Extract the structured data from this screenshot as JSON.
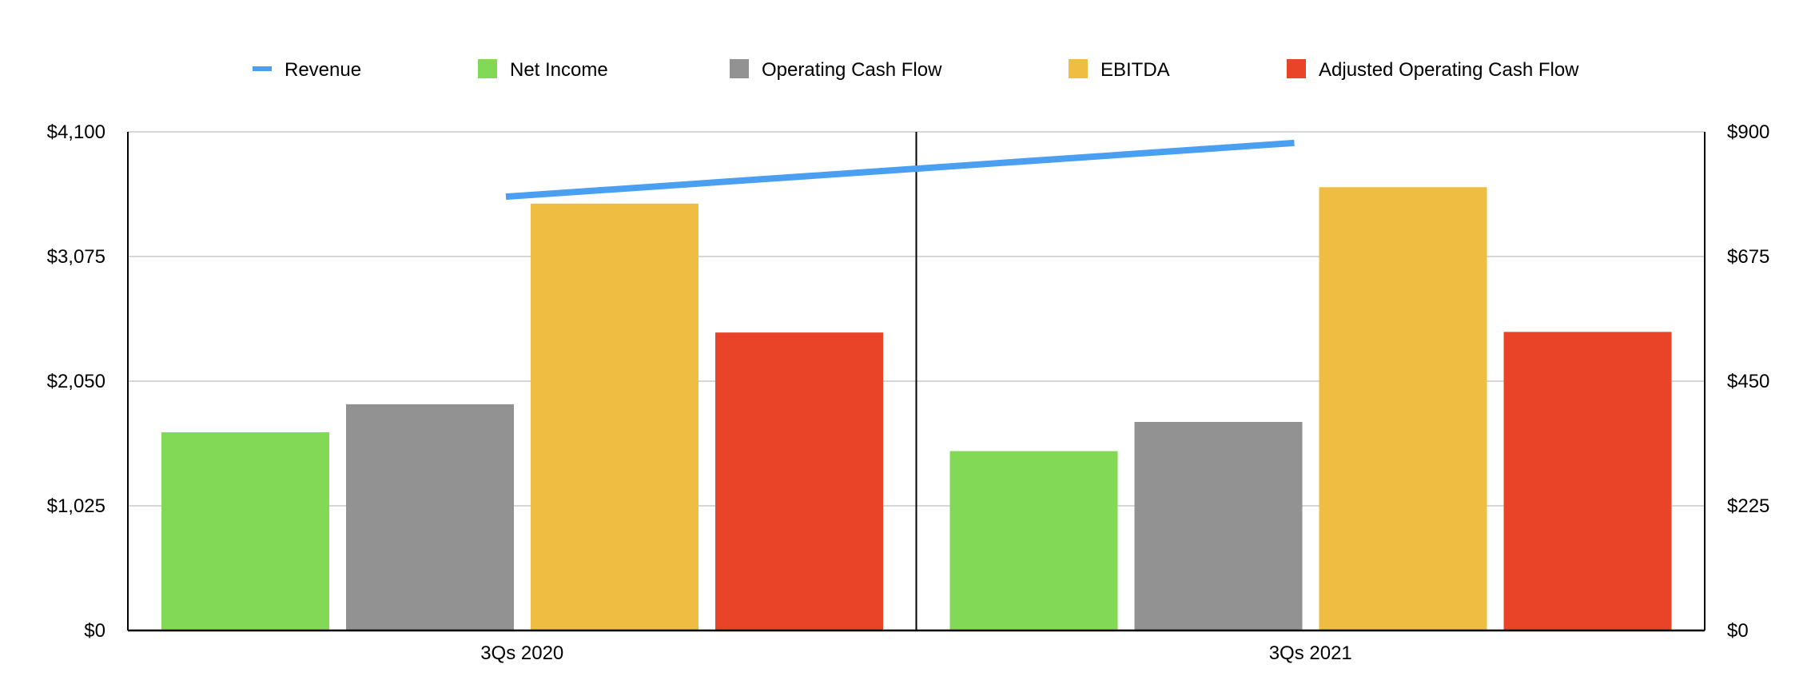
{
  "chart_data": {
    "type": "bar",
    "categories": [
      "3Qs 2020",
      "3Qs 2021"
    ],
    "series": [
      {
        "name": "Net Income",
        "type": "bar",
        "axis": "left",
        "color": "#82d955",
        "values": [
          1630,
          1475
        ]
      },
      {
        "name": "Operating Cash Flow",
        "type": "bar",
        "axis": "left",
        "color": "#929292",
        "values": [
          1860,
          1715
        ]
      },
      {
        "name": "EBITDA",
        "type": "bar",
        "axis": "left",
        "color": "#efbd41",
        "values": [
          3510,
          3645
        ]
      },
      {
        "name": "Adjusted Operating Cash Flow",
        "type": "bar",
        "axis": "left",
        "color": "#e94427",
        "values": [
          2450,
          2455
        ]
      },
      {
        "name": "Revenue",
        "type": "line",
        "axis": "right",
        "color": "#4a9ff0",
        "values": [
          783,
          880
        ]
      }
    ],
    "legend": {
      "placement": "top",
      "order": [
        "Revenue",
        "Net Income",
        "Operating Cash Flow",
        "EBITDA",
        "Adjusted Operating Cash Flow"
      ]
    },
    "y_left": {
      "ylim": [
        0,
        4100
      ],
      "tick_labels": [
        "$0",
        "$1,025",
        "$2,050",
        "$3,075",
        "$4,100"
      ],
      "tick_values": [
        0,
        1025,
        2050,
        3075,
        4100
      ]
    },
    "y_right": {
      "ylim": [
        0,
        900
      ],
      "tick_labels": [
        "$0",
        "$225",
        "$450",
        "$675",
        "$900"
      ],
      "tick_values": [
        0,
        225,
        450,
        675,
        900
      ]
    },
    "grid": true,
    "title": "",
    "xlabel": "",
    "ylabel": ""
  }
}
